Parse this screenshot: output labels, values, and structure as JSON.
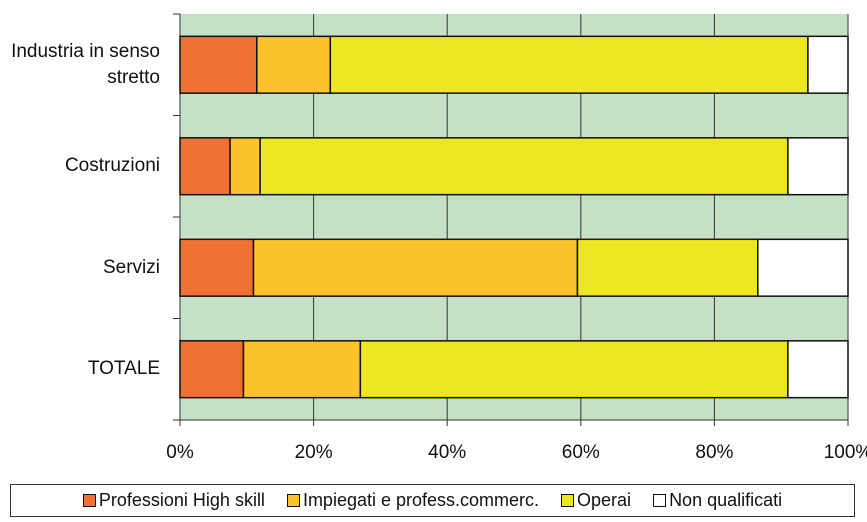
{
  "chart_data": {
    "type": "bar",
    "orientation": "horizontal",
    "stacked": true,
    "categories": [
      "Industria in senso stretto",
      "Costruzioni",
      "Servizi",
      "TOTALE"
    ],
    "series": [
      {
        "name": "Professioni High skill",
        "color": "#f07232",
        "values": [
          11.5,
          7.5,
          11,
          9.5
        ]
      },
      {
        "name": "Impiegati e profess.commerc.",
        "color": "#fbc22b",
        "values": [
          11,
          4.5,
          48.5,
          17.5
        ]
      },
      {
        "name": "Operai",
        "color": "#ede622",
        "values": [
          71.5,
          79,
          27,
          64
        ]
      },
      {
        "name": "Non qualificati",
        "color": "#ffffff",
        "values": [
          6,
          9,
          13.5,
          9
        ]
      }
    ],
    "xlim": [
      0,
      100
    ],
    "xticks": [
      {
        "value": 0,
        "label": "0%"
      },
      {
        "value": 20,
        "label": "20%"
      },
      {
        "value": 40,
        "label": "40%"
      },
      {
        "value": 60,
        "label": "60%"
      },
      {
        "value": 80,
        "label": "80%"
      },
      {
        "value": 100,
        "label": "100%"
      }
    ],
    "grid": true,
    "background": "#c5e1c5",
    "legend": "bottom"
  }
}
